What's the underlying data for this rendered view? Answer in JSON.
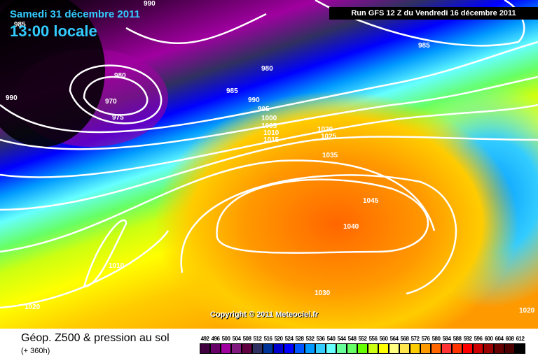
{
  "header": {
    "date": "Samedi 31 décembre 2011",
    "time": "13:00 locale",
    "run": "Run GFS 12 Z du Vendredi 16 décembre 2011"
  },
  "copyright": "Copyright © 2011 Meteociel.fr",
  "footer": {
    "title": "Géop. Z500 & pression au sol",
    "subtitle": "(+ 360h)"
  },
  "legend": {
    "labels": [
      "492",
      "496",
      "500",
      "504",
      "508",
      "512",
      "516",
      "520",
      "524",
      "528",
      "532",
      "536",
      "540",
      "544",
      "548",
      "552",
      "556",
      "560",
      "564",
      "568",
      "572",
      "576",
      "580",
      "584",
      "588",
      "592",
      "596",
      "600",
      "604",
      "608",
      "612"
    ],
    "colors": [
      "#400040",
      "#660066",
      "#a000a0",
      "#801880",
      "#600040",
      "#303060",
      "#003399",
      "#0000cc",
      "#0000ff",
      "#0055ff",
      "#0099ff",
      "#33ccff",
      "#66ffff",
      "#66ff99",
      "#66ff66",
      "#66ff00",
      "#ccff11",
      "#ffff00",
      "#ffff80",
      "#ffe64c",
      "#ffcc00",
      "#ff9900",
      "#ff6600",
      "#ff3333",
      "#ff3300",
      "#ff0000",
      "#cc0000",
      "#990000",
      "#660000",
      "#4c0000",
      "#000000"
    ]
  },
  "isobar_labels": [
    "990",
    "985",
    "990",
    "980",
    "970",
    "975",
    "980",
    "985",
    "990",
    "995",
    "1000",
    "1005",
    "1010",
    "1015",
    "1020",
    "1025",
    "1035",
    "1045",
    "1040",
    "1030",
    "1010",
    "1020",
    "985",
    "1020"
  ]
}
